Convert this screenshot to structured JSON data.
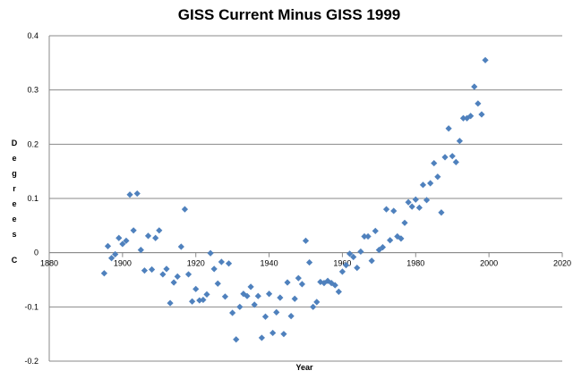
{
  "chart_data": {
    "type": "scatter",
    "title": "GISS Current Minus GISS 1999",
    "xlabel": "Year",
    "ylabel": "Degrees C",
    "xlim": [
      1880,
      2020
    ],
    "ylim": [
      -0.2,
      0.4
    ],
    "x_ticks": [
      "1880",
      "1900",
      "1920",
      "1940",
      "1960",
      "1980",
      "2000",
      "2020"
    ],
    "y_ticks": [
      "-0.2",
      "-0.1",
      "0",
      "0.1",
      "0.2",
      "0.3",
      "0.4"
    ],
    "grid": "horizontal",
    "legend": "none",
    "marker": "diamond",
    "color": "#4F81BD",
    "series": [
      {
        "points": [
          [
            1895,
            -0.038
          ],
          [
            1896,
            0.012
          ],
          [
            1897,
            -0.01
          ],
          [
            1898,
            -0.003
          ],
          [
            1899,
            0.027
          ],
          [
            1900,
            0.016
          ],
          [
            1901,
            0.022
          ],
          [
            1902,
            0.107
          ],
          [
            1903,
            0.041
          ],
          [
            1904,
            0.109
          ],
          [
            1905,
            0.005
          ],
          [
            1906,
            -0.033
          ],
          [
            1907,
            0.031
          ],
          [
            1908,
            -0.031
          ],
          [
            1909,
            0.027
          ],
          [
            1910,
            0.041
          ],
          [
            1911,
            -0.04
          ],
          [
            1912,
            -0.03
          ],
          [
            1913,
            -0.093
          ],
          [
            1914,
            -0.055
          ],
          [
            1915,
            -0.044
          ],
          [
            1916,
            0.011
          ],
          [
            1917,
            0.08
          ],
          [
            1918,
            -0.04
          ],
          [
            1919,
            -0.09
          ],
          [
            1920,
            -0.067
          ],
          [
            1921,
            -0.088
          ],
          [
            1922,
            -0.087
          ],
          [
            1923,
            -0.077
          ],
          [
            1924,
            -0.001
          ],
          [
            1925,
            -0.03
          ],
          [
            1926,
            -0.057
          ],
          [
            1927,
            -0.017
          ],
          [
            1928,
            -0.081
          ],
          [
            1929,
            -0.02
          ],
          [
            1930,
            -0.111
          ],
          [
            1931,
            -0.16
          ],
          [
            1932,
            -0.1
          ],
          [
            1933,
            -0.076
          ],
          [
            1934,
            -0.08
          ],
          [
            1935,
            -0.063
          ],
          [
            1936,
            -0.096
          ],
          [
            1937,
            -0.08
          ],
          [
            1938,
            -0.157
          ],
          [
            1939,
            -0.118
          ],
          [
            1940,
            -0.076
          ],
          [
            1941,
            -0.148
          ],
          [
            1942,
            -0.11
          ],
          [
            1943,
            -0.083
          ],
          [
            1944,
            -0.15
          ],
          [
            1945,
            -0.055
          ],
          [
            1946,
            -0.117
          ],
          [
            1947,
            -0.085
          ],
          [
            1948,
            -0.047
          ],
          [
            1949,
            -0.058
          ],
          [
            1950,
            0.022
          ],
          [
            1951,
            -0.018
          ],
          [
            1952,
            -0.1
          ],
          [
            1953,
            -0.091
          ],
          [
            1954,
            -0.054
          ],
          [
            1955,
            -0.056
          ],
          [
            1956,
            -0.052
          ],
          [
            1957,
            -0.056
          ],
          [
            1958,
            -0.06
          ],
          [
            1959,
            -0.072
          ],
          [
            1960,
            -0.035
          ],
          [
            1961,
            -0.023
          ],
          [
            1962,
            -0.002
          ],
          [
            1963,
            -0.008
          ],
          [
            1964,
            -0.028
          ],
          [
            1965,
            0.002
          ],
          [
            1966,
            0.03
          ],
          [
            1967,
            0.03
          ],
          [
            1968,
            -0.015
          ],
          [
            1969,
            0.04
          ],
          [
            1970,
            0.005
          ],
          [
            1971,
            0.01
          ],
          [
            1972,
            0.08
          ],
          [
            1973,
            0.023
          ],
          [
            1974,
            0.077
          ],
          [
            1975,
            0.03
          ],
          [
            1976,
            0.026
          ],
          [
            1977,
            0.055
          ],
          [
            1978,
            0.093
          ],
          [
            1979,
            0.085
          ],
          [
            1980,
            0.098
          ],
          [
            1981,
            0.083
          ],
          [
            1982,
            0.125
          ],
          [
            1983,
            0.097
          ],
          [
            1984,
            0.128
          ],
          [
            1985,
            0.165
          ],
          [
            1986,
            0.14
          ],
          [
            1987,
            0.074
          ],
          [
            1988,
            0.176
          ],
          [
            1989,
            0.229
          ],
          [
            1990,
            0.178
          ],
          [
            1991,
            0.167
          ],
          [
            1992,
            0.206
          ],
          [
            1993,
            0.248
          ],
          [
            1994,
            0.248
          ],
          [
            1995,
            0.252
          ],
          [
            1996,
            0.306
          ],
          [
            1997,
            0.275
          ],
          [
            1998,
            0.255
          ],
          [
            1999,
            0.355
          ]
        ]
      }
    ]
  }
}
